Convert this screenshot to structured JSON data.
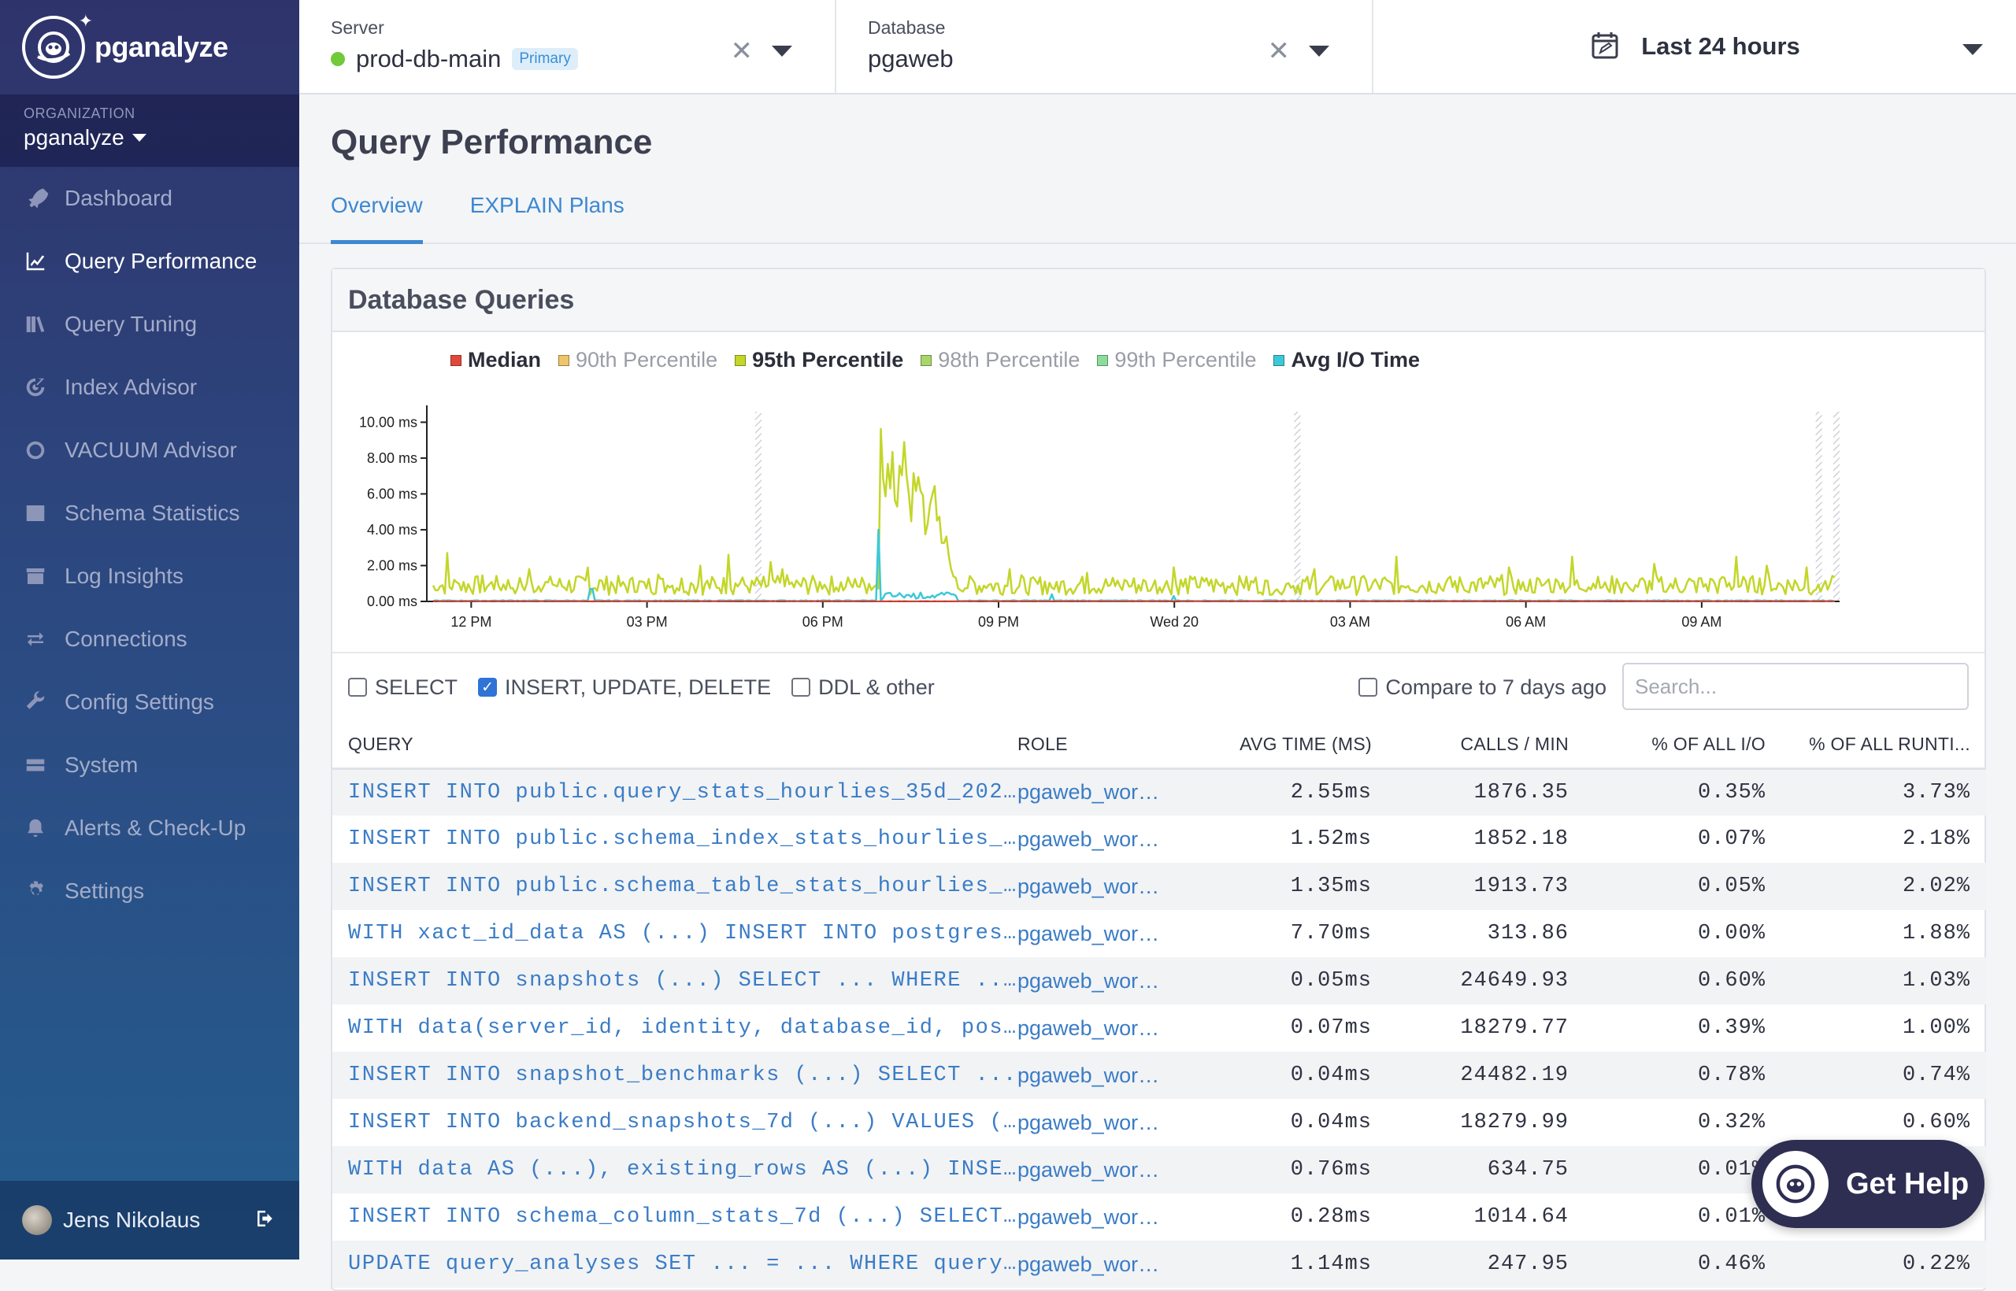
{
  "brand": {
    "name": "pganalyze"
  },
  "org": {
    "label": "ORGANIZATION",
    "name": "pganalyze"
  },
  "nav": [
    {
      "label": "Dashboard",
      "icon": "rocket-icon",
      "active": false
    },
    {
      "label": "Query Performance",
      "icon": "line-chart-icon",
      "active": true
    },
    {
      "label": "Query Tuning",
      "icon": "books-icon",
      "active": false
    },
    {
      "label": "Index Advisor",
      "icon": "target-icon",
      "active": false
    },
    {
      "label": "VACUUM Advisor",
      "icon": "circle-icon",
      "active": false
    },
    {
      "label": "Schema Statistics",
      "icon": "table-icon",
      "active": false
    },
    {
      "label": "Log Insights",
      "icon": "archive-icon",
      "active": false
    },
    {
      "label": "Connections",
      "icon": "exchange-icon",
      "active": false
    },
    {
      "label": "Config Settings",
      "icon": "wrench-icon",
      "active": false
    },
    {
      "label": "System",
      "icon": "hdd-icon",
      "active": false
    },
    {
      "label": "Alerts & Check-Up",
      "icon": "bell-icon",
      "active": false
    },
    {
      "label": "Settings",
      "icon": "gear-icon",
      "active": false
    }
  ],
  "user": {
    "name": "Jens Nikolaus"
  },
  "server": {
    "label": "Server",
    "value": "prod-db-main",
    "badge": "Primary",
    "status_color": "#72c93a"
  },
  "database": {
    "label": "Database",
    "value": "pgaweb"
  },
  "range": {
    "label": "Last 24 hours"
  },
  "page": {
    "title": "Query Performance",
    "tabs": [
      "Overview",
      "EXPLAIN Plans"
    ]
  },
  "card": {
    "title": "Database Queries"
  },
  "legend": [
    {
      "label": "Median",
      "color": "#e0493a",
      "on": true
    },
    {
      "label": "90th Percentile",
      "color": "#f0c46a",
      "on": false
    },
    {
      "label": "95th Percentile",
      "color": "#c3d629",
      "on": true
    },
    {
      "label": "98th Percentile",
      "color": "#a8d66a",
      "on": false
    },
    {
      "label": "99th Percentile",
      "color": "#8cdc9c",
      "on": false
    },
    {
      "label": "Avg I/O Time",
      "color": "#3dc8d8",
      "on": true
    }
  ],
  "chart_data": {
    "type": "line",
    "ylim": [
      0,
      10.5
    ],
    "yticks": [
      "10.00 ms",
      "8.00 ms",
      "6.00 ms",
      "4.00 ms",
      "2.00 ms",
      "0.00 ms"
    ],
    "ytick_values": [
      10,
      8,
      6,
      4,
      2,
      0
    ],
    "xticks": [
      "12 PM",
      "03 PM",
      "06 PM",
      "09 PM",
      "Wed 20",
      "03 AM",
      "06 AM",
      "09 AM"
    ],
    "xtick_hours": [
      12,
      15,
      18,
      21,
      24,
      27,
      30,
      33
    ],
    "x_range_hours": [
      11.35,
      35.3
    ],
    "gap_markers_hours": [
      16.9,
      26.1,
      35.0,
      35.3
    ],
    "series": [
      {
        "name": "95th Percentile",
        "color": "#c3d629",
        "spike_hours": [
          11.6,
          13.0,
          14.0,
          15.2,
          15.9,
          16.4,
          17.1,
          17.3,
          19.1,
          19.35,
          19.6,
          20.0,
          21.2,
          22.5,
          24.0,
          26.4,
          27.8,
          29.7,
          30.8,
          32.2,
          33.6,
          34.1,
          34.8
        ],
        "spike_values": [
          2.7,
          1.8,
          1.9,
          1.5,
          2.0,
          2.6,
          2.2,
          1.8,
          9.9,
          8.0,
          6.5,
          2.5,
          1.8,
          1.6,
          1.9,
          1.8,
          2.5,
          1.9,
          2.5,
          2.1,
          2.5,
          2.0,
          1.9
        ],
        "baseline": 1.2,
        "peak_window_hours": [
          18.95,
          20.25
        ],
        "peak_values": [
          9.9,
          7.5,
          9.4,
          8.3,
          6.2,
          7.8,
          8.6,
          6.8,
          5.5,
          7.4,
          8.2,
          6.0,
          4.5,
          5.8,
          7.0,
          5.2,
          3.5,
          4.2,
          2.6,
          1.8
        ]
      },
      {
        "name": "Avg I/O Time",
        "color": "#3dc8d8",
        "spike_hours": [
          14.05,
          18.95,
          19.1,
          19.3,
          21.9,
          24.0
        ],
        "spike_values": [
          0.7,
          4.0,
          2.2,
          1.3,
          0.4,
          0.3
        ],
        "baseline": 0.05
      },
      {
        "name": "Median",
        "color": "#e0493a",
        "baseline": 0.02
      }
    ]
  },
  "filters": {
    "select": {
      "label": "SELECT",
      "checked": false
    },
    "write": {
      "label": "INSERT, UPDATE, DELETE",
      "checked": true
    },
    "ddl": {
      "label": "DDL & other",
      "checked": false
    },
    "compare": {
      "label": "Compare to 7 days ago",
      "checked": false
    },
    "search_placeholder": "Search..."
  },
  "table": {
    "headers": [
      "QUERY",
      "ROLE",
      "AVG TIME (MS)",
      "CALLS / MIN",
      "% OF ALL I/O",
      "% OF ALL RUNTI..."
    ],
    "rows": [
      {
        "query": "INSERT INTO public.query_stats_hourlies_35d_202…",
        "role": "pgaweb_wor…",
        "avg": "2.55ms",
        "calls": "1876.35",
        "io": "0.35%",
        "runtime": "3.73%"
      },
      {
        "query": "INSERT INTO public.schema_index_stats_hourlies_…",
        "role": "pgaweb_wor…",
        "avg": "1.52ms",
        "calls": "1852.18",
        "io": "0.07%",
        "runtime": "2.18%"
      },
      {
        "query": "INSERT INTO public.schema_table_stats_hourlies_…",
        "role": "pgaweb_wor…",
        "avg": "1.35ms",
        "calls": "1913.73",
        "io": "0.05%",
        "runtime": "2.02%"
      },
      {
        "query": "WITH xact_id_data AS (...) INSERT INTO postgres…",
        "role": "pgaweb_wor…",
        "avg": "7.70ms",
        "calls": "313.86",
        "io": "0.00%",
        "runtime": "1.88%"
      },
      {
        "query": "INSERT INTO snapshots (...) SELECT ... WHERE ..…",
        "role": "pgaweb_wor…",
        "avg": "0.05ms",
        "calls": "24649.93",
        "io": "0.60%",
        "runtime": "1.03%"
      },
      {
        "query": "WITH data(server_id, identity, database_id, pos…",
        "role": "pgaweb_wor…",
        "avg": "0.07ms",
        "calls": "18279.77",
        "io": "0.39%",
        "runtime": "1.00%"
      },
      {
        "query": "INSERT INTO snapshot_benchmarks (...) SELECT ...",
        "role": "pgaweb_wor…",
        "avg": "0.04ms",
        "calls": "24482.19",
        "io": "0.78%",
        "runtime": "0.74%"
      },
      {
        "query": "INSERT INTO backend_snapshots_7d (...) VALUES (…",
        "role": "pgaweb_wor…",
        "avg": "0.04ms",
        "calls": "18279.99",
        "io": "0.32%",
        "runtime": "0.60%"
      },
      {
        "query": "WITH data AS (...), existing_rows AS (...) INSE…",
        "role": "pgaweb_wor…",
        "avg": "0.76ms",
        "calls": "634.75",
        "io": "0.01%",
        "runtime": ""
      },
      {
        "query": "INSERT INTO schema_column_stats_7d (...) SELECT…",
        "role": "pgaweb_wor…",
        "avg": "0.28ms",
        "calls": "1014.64",
        "io": "0.01%",
        "runtime": ""
      },
      {
        "query": "UPDATE query_analyses SET ... = ... WHERE query…",
        "role": "pgaweb_wor…",
        "avg": "1.14ms",
        "calls": "247.95",
        "io": "0.46%",
        "runtime": "0.22%"
      }
    ]
  },
  "help": {
    "label": "Get Help"
  }
}
